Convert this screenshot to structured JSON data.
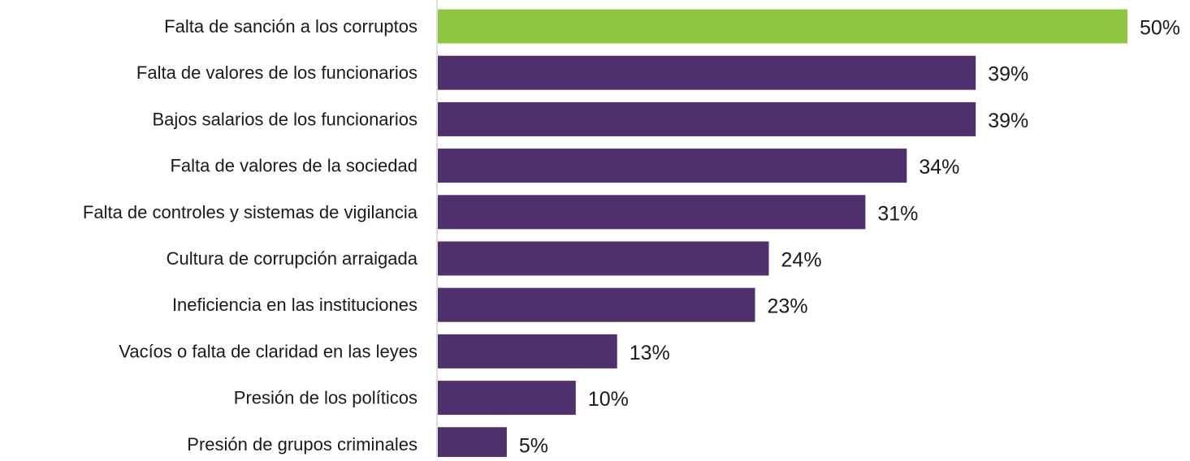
{
  "chart_data": {
    "type": "bar",
    "orientation": "horizontal",
    "categories": [
      "Falta de sanción a los corruptos",
      "Falta de valores de los funcionarios",
      "Bajos salarios de los funcionarios",
      "Falta de valores de la sociedad",
      "Falta de controles y sistemas de vigilancia",
      "Cultura de corrupción arraigada",
      "Ineficiencia en las instituciones",
      "Vacíos o falta de claridad en las leyes",
      "Presión de los políticos",
      "Presión de grupos criminales"
    ],
    "values": [
      50,
      39,
      39,
      34,
      31,
      24,
      23,
      13,
      10,
      5
    ],
    "value_labels": [
      "50%",
      "39%",
      "39%",
      "34%",
      "31%",
      "24%",
      "23%",
      "13%",
      "10%",
      "5%"
    ],
    "xlim": [
      0,
      50
    ],
    "grid": false,
    "legend": "none",
    "colors": {
      "highlight": "#8dc63f",
      "bar": "#4f3170",
      "axis": "#d0d0d0",
      "text": "#1a1a1a"
    },
    "highlight_index": 0
  }
}
